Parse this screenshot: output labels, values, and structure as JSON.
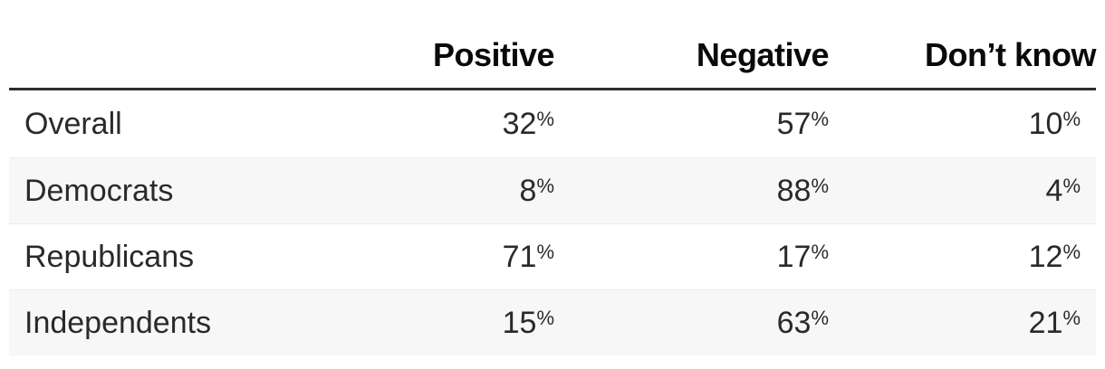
{
  "chart_data": {
    "type": "table",
    "title": "",
    "categories": [
      "Overall",
      "Democrats",
      "Republicans",
      "Independents"
    ],
    "series": [
      {
        "name": "Positive",
        "values": [
          32,
          8,
          71,
          15
        ]
      },
      {
        "name": "Negative",
        "values": [
          57,
          88,
          17,
          63
        ]
      },
      {
        "name": "Don’t know",
        "values": [
          10,
          4,
          12,
          21
        ]
      }
    ],
    "unit": "%",
    "layout": {
      "zebra_striping": true,
      "header_rule_color": "#2e2e2e",
      "stripe_color": "#f7f7f7"
    }
  },
  "table": {
    "columns": [
      {
        "label": "Positive"
      },
      {
        "label": "Negative"
      },
      {
        "label": "Don’t know"
      }
    ],
    "rows": [
      {
        "label": "Overall",
        "values": [
          {
            "number": "32",
            "unit": "%"
          },
          {
            "number": "57",
            "unit": "%"
          },
          {
            "number": "10",
            "unit": "%"
          }
        ]
      },
      {
        "label": "Democrats",
        "values": [
          {
            "number": "8",
            "unit": "%"
          },
          {
            "number": "88",
            "unit": "%"
          },
          {
            "number": "4",
            "unit": "%"
          }
        ]
      },
      {
        "label": "Republicans",
        "values": [
          {
            "number": "71",
            "unit": "%"
          },
          {
            "number": "17",
            "unit": "%"
          },
          {
            "number": "12",
            "unit": "%"
          }
        ]
      },
      {
        "label": "Independents",
        "values": [
          {
            "number": "15",
            "unit": "%"
          },
          {
            "number": "63",
            "unit": "%"
          },
          {
            "number": "21",
            "unit": "%"
          }
        ]
      }
    ]
  },
  "colors": {
    "header_text": "#0a0a0a",
    "body_text": "#2a2a2a",
    "header_rule": "#2e2e2e",
    "stripe": "#f7f7f7",
    "row_separator": "#ececec",
    "background": "#ffffff"
  }
}
